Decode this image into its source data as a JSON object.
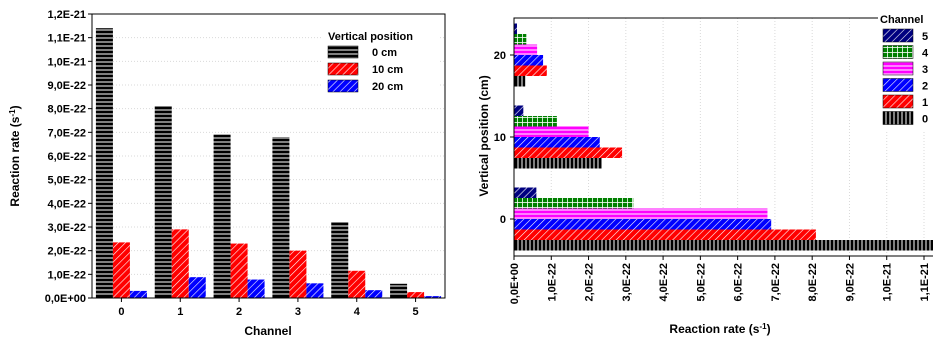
{
  "colors": {
    "0": "#000000",
    "1": "#ff0000",
    "2": "#0000ff",
    "3": "#ff00ff",
    "4": "#008000",
    "5": "#000080"
  },
  "chart_data": [
    {
      "type": "bar",
      "orientation": "vertical",
      "xlabel": "Channel",
      "ylabel": "Reaction rate (s",
      "ylabel_sup": "-1",
      "ylabel_end": ")",
      "categories": [
        "0",
        "1",
        "2",
        "3",
        "4",
        "5"
      ],
      "yticks": [
        "0,0E+00",
        "1,0E-22",
        "2,0E-22",
        "3,0E-22",
        "4,0E-22",
        "5,0E-22",
        "6,0E-22",
        "7,0E-22",
        "8,0E-22",
        "9,0E-22",
        "1,0E-21",
        "1,1E-21",
        "1,2E-21"
      ],
      "ylim": [
        0,
        1.2e-21
      ],
      "grid": true,
      "legend_title": "Vertical position",
      "legend_position": "top-right",
      "series": [
        {
          "name": "0 cm",
          "color": "#000000",
          "pattern": "hlines",
          "values": [
            1.14e-21,
            8.1e-22,
            6.9e-22,
            6.8e-22,
            3.2e-22,
            6e-23
          ]
        },
        {
          "name": "10 cm",
          "color": "#ff0000",
          "pattern": "diag",
          "values": [
            2.35e-22,
            2.9e-22,
            2.3e-22,
            2e-22,
            1.15e-22,
            2.5e-23
          ]
        },
        {
          "name": "20 cm",
          "color": "#0000ff",
          "pattern": "diag",
          "values": [
            3e-23,
            8.8e-23,
            7.8e-23,
            6.2e-23,
            3.3e-23,
            8e-24
          ]
        }
      ]
    },
    {
      "type": "bar",
      "orientation": "horizontal",
      "xlabel": "Reaction rate (s",
      "xlabel_sup": "-1",
      "xlabel_end": ")",
      "ylabel": "Vertical position (cm)",
      "categories": [
        "0",
        "10",
        "20"
      ],
      "xticks": [
        "0,0E+00",
        "1,0E-22",
        "2,0E-22",
        "3,0E-22",
        "4,0E-22",
        "5,0E-22",
        "6,0E-22",
        "7,0E-22",
        "8,0E-22",
        "9,0E-22",
        "1,0E-21",
        "1,1E-21"
      ],
      "xlim": [
        0,
        1.14e-21
      ],
      "grid": true,
      "legend_title": "Channel",
      "legend_position": "top-right",
      "series": [
        {
          "name": "0",
          "color": "#000000",
          "pattern": "vlines",
          "values": [
            1.14e-21,
            2.35e-22,
            3e-23
          ]
        },
        {
          "name": "1",
          "color": "#ff0000",
          "pattern": "diag",
          "values": [
            8.1e-22,
            2.9e-22,
            8.8e-23
          ]
        },
        {
          "name": "2",
          "color": "#0000ff",
          "pattern": "diag",
          "values": [
            6.9e-22,
            2.3e-22,
            7.8e-23
          ]
        },
        {
          "name": "3",
          "color": "#ff00ff",
          "pattern": "hlines",
          "values": [
            6.8e-22,
            2e-22,
            6.2e-23
          ]
        },
        {
          "name": "4",
          "color": "#008000",
          "pattern": "grid",
          "values": [
            3.2e-22,
            1.15e-22,
            3.3e-23
          ]
        },
        {
          "name": "5",
          "color": "#000080",
          "pattern": "diag",
          "values": [
            6e-23,
            2.5e-23,
            8e-24
          ]
        }
      ]
    }
  ]
}
